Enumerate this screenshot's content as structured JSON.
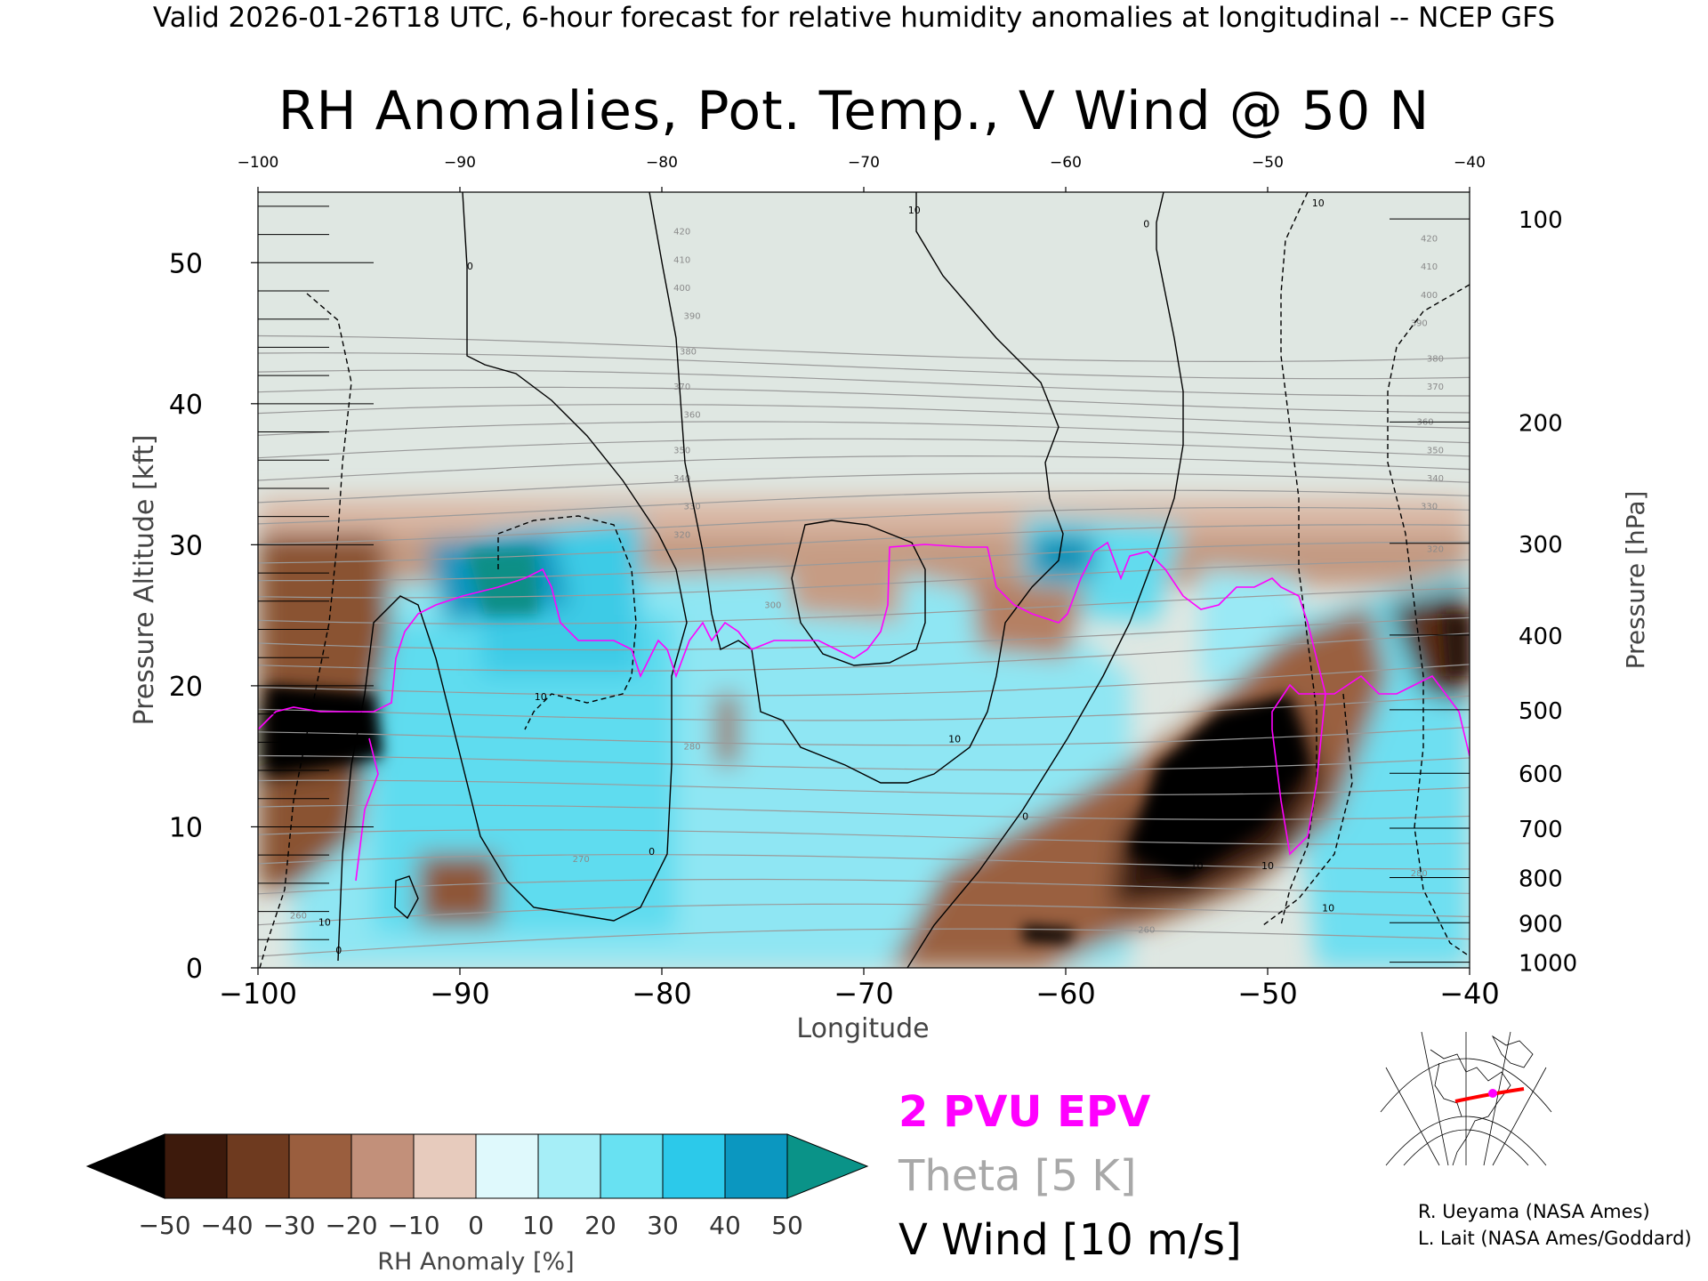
{
  "header": "Valid 2026-01-26T18 UTC, 6-hour forecast for relative humidity anomalies at longitudinal -- NCEP GFS",
  "title": "RH Anomalies, Pot. Temp., V Wind @ 50 N",
  "chart_data": {
    "type": "heatmap",
    "xlabel": "Longitude",
    "ylabel_left": "Pressure Altitude [kft]",
    "ylabel_right": "Pressure [hPa]",
    "xlim": [
      -100,
      -40
    ],
    "ylim": [
      0,
      55
    ],
    "x_ticks": [
      -100,
      -90,
      -80,
      -70,
      -60,
      -50,
      -40
    ],
    "x_tick_labels": [
      "−100",
      "−90",
      "−80",
      "−70",
      "−60",
      "−50",
      "−40"
    ],
    "top_tick_labels": [
      "−100",
      "−90",
      "−80",
      "−70",
      "−60",
      "−50",
      "−40"
    ],
    "y_ticks": [
      0,
      10,
      20,
      30,
      40,
      50
    ],
    "pressure_ticks": [
      {
        "p": 100,
        "alt": 53.1
      },
      {
        "p": 200,
        "alt": 38.7
      },
      {
        "p": 300,
        "alt": 30.1
      },
      {
        "p": 400,
        "alt": 23.6
      },
      {
        "p": 500,
        "alt": 18.3
      },
      {
        "p": 600,
        "alt": 13.8
      },
      {
        "p": 700,
        "alt": 9.9
      },
      {
        "p": 800,
        "alt": 6.4
      },
      {
        "p": 900,
        "alt": 3.2
      },
      {
        "p": 1000,
        "alt": 0.4
      }
    ],
    "theta_labels": [
      {
        "text": "420",
        "x": -79,
        "y": 52
      },
      {
        "text": "410",
        "x": -79,
        "y": 50
      },
      {
        "text": "400",
        "x": -79,
        "y": 48
      },
      {
        "text": "390",
        "x": -78.5,
        "y": 46
      },
      {
        "text": "380",
        "x": -78.7,
        "y": 43.5
      },
      {
        "text": "370",
        "x": -79,
        "y": 41
      },
      {
        "text": "360",
        "x": -78.5,
        "y": 39
      },
      {
        "text": "350",
        "x": -79,
        "y": 36.5
      },
      {
        "text": "340",
        "x": -79,
        "y": 34.5
      },
      {
        "text": "330",
        "x": -78.5,
        "y": 32.5
      },
      {
        "text": "320",
        "x": -79,
        "y": 30.5
      },
      {
        "text": "300",
        "x": -74.5,
        "y": 25.5
      },
      {
        "text": "280",
        "x": -78.5,
        "y": 15.5
      },
      {
        "text": "270",
        "x": -84,
        "y": 7.5
      },
      {
        "text": "260",
        "x": -98,
        "y": 3.5
      },
      {
        "text": "260",
        "x": -56,
        "y": 2.5
      },
      {
        "text": "280",
        "x": -42.5,
        "y": 6.5
      },
      {
        "text": "420",
        "x": -42,
        "y": 51.5
      },
      {
        "text": "410",
        "x": -42,
        "y": 49.5
      },
      {
        "text": "400",
        "x": -42,
        "y": 47.5
      },
      {
        "text": "390",
        "x": -42.5,
        "y": 45.5
      },
      {
        "text": "380",
        "x": -41.7,
        "y": 43
      },
      {
        "text": "370",
        "x": -41.7,
        "y": 41
      },
      {
        "text": "360",
        "x": -42.2,
        "y": 38.5
      },
      {
        "text": "350",
        "x": -41.7,
        "y": 36.5
      },
      {
        "text": "340",
        "x": -41.7,
        "y": 34.5
      },
      {
        "text": "330",
        "x": -42,
        "y": 32.5
      },
      {
        "text": "320",
        "x": -41.7,
        "y": 29.5
      }
    ],
    "vwind_labels": [
      {
        "text": "0",
        "x": -89.5,
        "y": 49.5
      },
      {
        "text": "10",
        "x": -67.5,
        "y": 53.5
      },
      {
        "text": "0",
        "x": -56,
        "y": 52.5
      },
      {
        "text": "10",
        "x": -47.5,
        "y": 54
      },
      {
        "text": "10",
        "x": -86,
        "y": 19
      },
      {
        "text": "10",
        "x": -96.7,
        "y": 3
      },
      {
        "text": "0",
        "x": -96,
        "y": 1
      },
      {
        "text": "0",
        "x": -80.5,
        "y": 8
      },
      {
        "text": "10",
        "x": -65.5,
        "y": 16
      },
      {
        "text": "0",
        "x": -62,
        "y": 10.5
      },
      {
        "text": "10",
        "x": -50,
        "y": 7
      },
      {
        "text": "10",
        "x": -53.5,
        "y": 7
      },
      {
        "text": "10",
        "x": -47,
        "y": 4
      }
    ],
    "colorbar": {
      "label": "RH Anomaly [%]",
      "tick_labels": [
        "−50",
        "−40",
        "−30",
        "−20",
        "−10",
        "0",
        "10",
        "20",
        "30",
        "40",
        "50"
      ],
      "colors": [
        "#000000",
        "#3d1a0c",
        "#6e3a1f",
        "#9a5e3e",
        "#c2907a",
        "#e7cbbd",
        "#dff9fc",
        "#a6eef7",
        "#68e1f2",
        "#2cc9ea",
        "#0b97c0",
        "#0a9388"
      ]
    },
    "legend": [
      {
        "text": "2 PVU EPV",
        "color": "#ff00ff"
      },
      {
        "text": "Theta [5 K]",
        "color": "#a8a8a8"
      },
      {
        "text": "V Wind [10 m/s]",
        "color": "#000000"
      }
    ],
    "colors": {
      "theta": "#a0a0a0",
      "epv": "#ff00ff",
      "vwind": "#000000",
      "stratosphere": "#dfe7e2",
      "inset_track": "#ff0000",
      "inset_marker": "#ff00ff"
    }
  },
  "credits": [
    "R. Ueyama (NASA Ames)",
    "L. Lait (NASA Ames/Goddard)"
  ]
}
